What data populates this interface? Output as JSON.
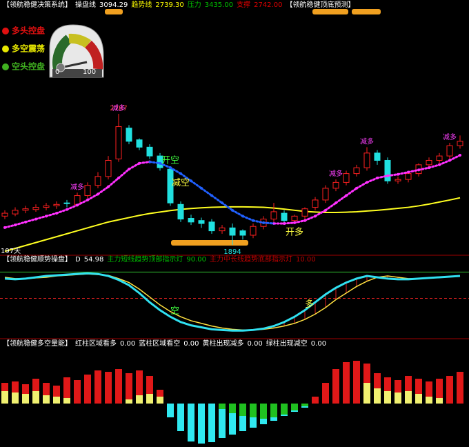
{
  "header": {
    "title": "【领航稳健决策系统】",
    "items": [
      {
        "label": "操盘线",
        "value": 3094.29,
        "color": "#ffffff"
      },
      {
        "label": "趋势线",
        "value": {
          "value": 2739.3,
          "label": "2739.30"
        },
        "color": "#ffff00"
      },
      {
        "label": "压力",
        "value": {
          "value": 3435,
          "label": "3435.00"
        },
        "color": "#00c000"
      },
      {
        "label": "支撑",
        "value": {
          "value": 2742,
          "label": "2742.00"
        },
        "color": "#e00000"
      }
    ],
    "title2": "【领航稳健顶底预测】"
  },
  "legend": [
    {
      "name": "多头控盘",
      "color": "#e01010"
    },
    {
      "name": "多空震荡",
      "color": "#e8e800"
    },
    {
      "name": "空头控盘",
      "color": "#40b020"
    }
  ],
  "gauge": {
    "min": 0,
    "max": 100
  },
  "price_panel": {
    "ylim": [
      1833,
      3497
    ],
    "open": [
      2090,
      2105,
      2130,
      2135,
      2150,
      2160,
      2180,
      2170,
      2230,
      2300,
      2360,
      2480,
      2690,
      2610,
      2560,
      2500,
      2410,
      2170,
      2075,
      2060,
      2050,
      1990,
      2010,
      1990,
      1960,
      2020,
      2070,
      2110,
      2060,
      2090,
      2150,
      2200,
      2280,
      2320,
      2380,
      2420,
      2520,
      2470,
      2330,
      2340,
      2380,
      2440,
      2470,
      2500,
      2570
    ],
    "close": [
      2110,
      2130,
      2140,
      2150,
      2160,
      2170,
      2175,
      2230,
      2300,
      2360,
      2470,
      2700,
      2600,
      2560,
      2500,
      2420,
      2180,
      2070,
      2050,
      2040,
      1990,
      2010,
      1960,
      1960,
      2020,
      2070,
      2120,
      2060,
      2090,
      2140,
      2200,
      2280,
      2320,
      2380,
      2420,
      2520,
      2470,
      2330,
      2340,
      2380,
      2440,
      2470,
      2500,
      2570,
      2600
    ],
    "high": [
      2130,
      2150,
      2160,
      2170,
      2180,
      2190,
      2200,
      2250,
      2320,
      2390,
      2500,
      2787,
      2710,
      2620,
      2580,
      2520,
      2430,
      2190,
      2100,
      2080,
      2070,
      2030,
      2040,
      2000,
      2040,
      2090,
      2180,
      2130,
      2100,
      2150,
      2220,
      2300,
      2340,
      2400,
      2440,
      2560,
      2540,
      2490,
      2360,
      2390,
      2450,
      2490,
      2520,
      2590,
      2640
    ],
    "low": [
      2070,
      2090,
      2110,
      2120,
      2130,
      2140,
      2150,
      2160,
      2210,
      2280,
      2340,
      2460,
      2580,
      2540,
      2480,
      2400,
      2160,
      2050,
      2030,
      2010,
      1970,
      1970,
      1894,
      1930,
      1940,
      2000,
      2050,
      2040,
      2040,
      2070,
      2130,
      2180,
      2260,
      2300,
      2360,
      2400,
      2440,
      2310,
      2310,
      2320,
      2360,
      2420,
      2450,
      2480,
      2550
    ],
    "ma_long": [
      1850,
      1870,
      1890,
      1910,
      1930,
      1950,
      1970,
      1990,
      2010,
      2030,
      2050,
      2065,
      2080,
      2095,
      2108,
      2118,
      2128,
      2136,
      2142,
      2147,
      2150,
      2152,
      2153,
      2153,
      2152,
      2150,
      2145,
      2138,
      2130,
      2122,
      2118,
      2115,
      2115,
      2117,
      2120,
      2125,
      2130,
      2136,
      2143,
      2150,
      2160,
      2172,
      2186,
      2200,
      2215
    ],
    "trend_dots": [
      2012,
      2030,
      2050,
      2070,
      2090,
      2110,
      2135,
      2165,
      2200,
      2240,
      2290,
      2350,
      2410,
      2450,
      2460,
      2450,
      2420,
      2380,
      2330,
      2280,
      2230,
      2180,
      2130,
      2090,
      2060,
      2045,
      2040,
      2040,
      2045,
      2060,
      2090,
      2130,
      2180,
      2230,
      2280,
      2320,
      2350,
      2365,
      2375,
      2390,
      2405,
      2420,
      2440,
      2470,
      2505
    ],
    "high_label": 2787,
    "low_label": 1894,
    "days_label": "197天",
    "annotations": [
      {
        "text": "减多",
        "i": 7,
        "color": "#ff40ff"
      },
      {
        "text": "减多",
        "i": 11,
        "color": "#ff40ff"
      },
      {
        "text": "开空",
        "i": 16,
        "color": "#40ff40"
      },
      {
        "text": "减空",
        "i": 17,
        "color": "#ffff40"
      },
      {
        "text": "开多",
        "i": 28,
        "color": "#ffff40"
      },
      {
        "text": "减多",
        "i": 32,
        "color": "#ff40ff"
      },
      {
        "text": "减多",
        "i": 35,
        "color": "#ff40ff"
      },
      {
        "text": "减多",
        "i": 43,
        "color": "#ff40ff"
      }
    ]
  },
  "oscillator_panel": {
    "title": "【领航稳健顺势操盘】",
    "d_label": "D",
    "d_value": 54.98,
    "top_label": "主力短线趋势顶部指示灯",
    "top_value": {
      "value": 90,
      "label": "90.00"
    },
    "bottom_label": "主力中长线趋势底部指示灯",
    "bottom_value": {
      "value": 10,
      "label": "10.00"
    },
    "ylim": [
      -5,
      105
    ],
    "levels": [
      90,
      50
    ],
    "cyan": [
      80,
      79,
      80,
      82,
      84,
      85,
      86,
      87,
      88,
      87,
      84,
      78,
      70,
      58,
      44,
      32,
      22,
      14,
      9,
      6,
      3,
      2,
      1,
      1,
      2,
      4,
      8,
      14,
      22,
      32,
      44,
      56,
      66,
      74,
      80,
      84,
      82,
      80,
      79,
      79,
      80,
      81,
      82,
      83,
      84
    ],
    "yellow": [
      82,
      80,
      80,
      81,
      82,
      84,
      85,
      86,
      87,
      86,
      85,
      80,
      74,
      64,
      52,
      40,
      30,
      22,
      16,
      12,
      8,
      5,
      3,
      2,
      2,
      3,
      5,
      8,
      12,
      18,
      26,
      36,
      48,
      58,
      68,
      76,
      82,
      84,
      82,
      80,
      80,
      81,
      82,
      83,
      84
    ],
    "annotations": [
      {
        "text": "空",
        "i": 16,
        "color": "#40ff40"
      },
      {
        "text": "多",
        "i": 29,
        "color": "#ffff40"
      }
    ]
  },
  "volume_panel": {
    "title": "【领航稳健多空量能】",
    "items": [
      {
        "label": "红柱区域看多",
        "value": {
          "value": 0,
          "label": "0.00"
        },
        "color": "#ffffff"
      },
      {
        "label": "蓝柱区域看空",
        "value": {
          "value": 0,
          "label": "0.00"
        },
        "color": "#ffffff"
      },
      {
        "label": "黄柱出现减多",
        "value": {
          "value": 0,
          "label": "0.00"
        },
        "color": "#ffffff"
      },
      {
        "label": "绿柱出现减空",
        "value": {
          "value": 0,
          "label": "0.00"
        },
        "color": "#ffffff"
      }
    ],
    "main": [
      30,
      32,
      28,
      36,
      30,
      26,
      38,
      34,
      42,
      48,
      46,
      50,
      44,
      48,
      40,
      20,
      -20,
      -40,
      -55,
      -58,
      -56,
      -50,
      -45,
      -40,
      -35,
      -30,
      -25,
      -18,
      -12,
      -6,
      10,
      30,
      50,
      60,
      62,
      58,
      44,
      38,
      34,
      40,
      36,
      32,
      36,
      40,
      46
    ],
    "sub": [
      18,
      16,
      14,
      18,
      12,
      10,
      8,
      0,
      0,
      0,
      0,
      0,
      6,
      12,
      14,
      10,
      0,
      0,
      0,
      0,
      0,
      -8,
      -14,
      -18,
      -20,
      -22,
      -20,
      -16,
      -10,
      -4,
      0,
      0,
      0,
      0,
      0,
      30,
      22,
      18,
      16,
      18,
      14,
      10,
      8,
      0,
      0
    ]
  }
}
